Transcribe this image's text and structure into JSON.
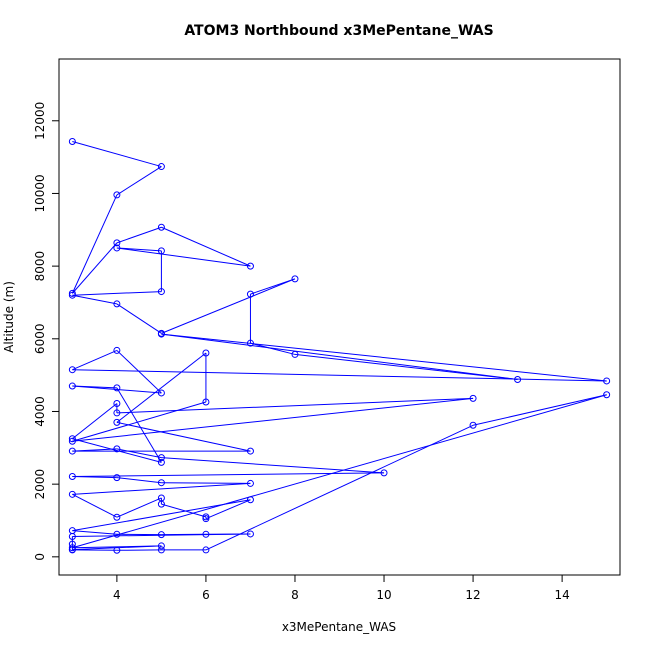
{
  "chart_data": {
    "type": "line",
    "title": "ATOM3 Northbound x3MePentane_WAS",
    "xlabel": "x3MePentane_WAS",
    "ylabel": "Altitude (m)",
    "xlim": [
      2.7,
      15.3
    ],
    "ylim": [
      -500,
      13700
    ],
    "xticks": [
      4,
      6,
      8,
      10,
      12,
      14
    ],
    "yticks": [
      0,
      2000,
      4000,
      6000,
      8000,
      10000,
      12000
    ],
    "grid": false,
    "line_color": "#0000ff",
    "marker": "open-circle",
    "series": [
      {
        "points": [
          [
            3,
            11430
          ],
          [
            5,
            10740
          ],
          [
            4,
            9960
          ],
          [
            3,
            7250
          ],
          [
            4,
            8640
          ],
          [
            5,
            9070
          ],
          [
            7,
            8000
          ],
          [
            4,
            8500
          ],
          [
            5,
            8420
          ],
          [
            5,
            7300
          ],
          [
            3,
            7200
          ],
          [
            4,
            6960
          ],
          [
            5,
            6150
          ],
          [
            8,
            7650
          ],
          [
            7,
            7230
          ],
          [
            7,
            5880
          ],
          [
            8,
            5570
          ],
          [
            13,
            4880
          ],
          [
            5,
            6130
          ],
          [
            15,
            4840
          ],
          [
            3,
            5150
          ],
          [
            4,
            5680
          ],
          [
            5,
            4510
          ],
          [
            3,
            4700
          ],
          [
            4,
            4650
          ],
          [
            5,
            2600
          ],
          [
            3,
            3250
          ],
          [
            4,
            4220
          ],
          [
            4,
            3960
          ],
          [
            12,
            4360
          ],
          [
            3,
            3180
          ],
          [
            6,
            4260
          ],
          [
            6,
            5610
          ],
          [
            4,
            3700
          ],
          [
            7,
            2910
          ],
          [
            3,
            2910
          ],
          [
            4,
            2970
          ],
          [
            5,
            2730
          ],
          [
            10,
            2310
          ],
          [
            3,
            2210
          ],
          [
            4,
            2180
          ],
          [
            5,
            2040
          ],
          [
            7,
            2020
          ],
          [
            3,
            1720
          ],
          [
            4,
            1090
          ],
          [
            5,
            1620
          ],
          [
            5,
            1450
          ],
          [
            6,
            1100
          ],
          [
            6,
            1050
          ],
          [
            7,
            1570
          ],
          [
            3,
            720
          ],
          [
            4,
            620
          ],
          [
            5,
            610
          ],
          [
            6,
            620
          ],
          [
            7,
            630
          ],
          [
            3,
            560
          ],
          [
            3,
            350
          ],
          [
            3,
            190
          ],
          [
            4,
            180
          ],
          [
            5,
            190
          ],
          [
            6,
            190
          ],
          [
            12,
            3620
          ],
          [
            15,
            4460
          ],
          [
            3,
            250
          ],
          [
            5,
            300
          ],
          [
            3,
            200
          ]
        ]
      }
    ]
  }
}
